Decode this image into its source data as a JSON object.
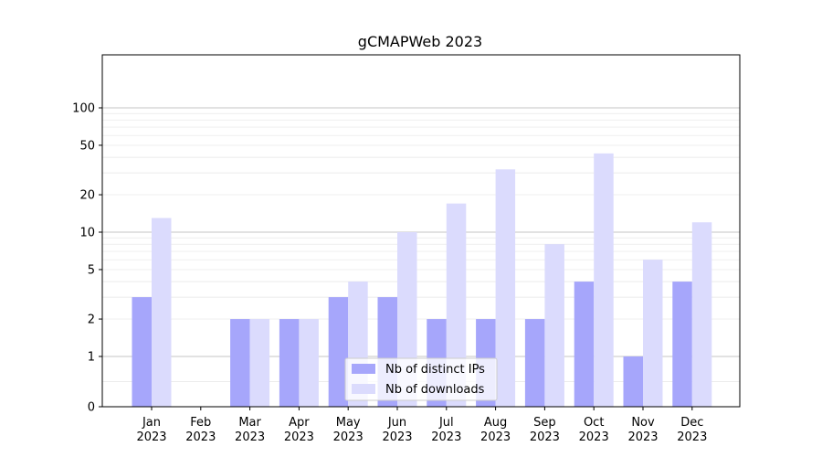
{
  "chart_data": {
    "type": "bar",
    "title": "gCMAPWeb 2023",
    "xlabel": "",
    "ylabel": "",
    "yscale": "symlog",
    "ylim": [
      0,
      120
    ],
    "yticks": [
      0,
      1,
      2,
      5,
      10,
      20,
      50,
      100
    ],
    "grid": "horizontal",
    "legend_position": "bottom-center",
    "categories": [
      "Jan\n2023",
      "Feb\n2023",
      "Mar\n2023",
      "Apr\n2023",
      "May\n2023",
      "Jun\n2023",
      "Jul\n2023",
      "Aug\n2023",
      "Sep\n2023",
      "Oct\n2023",
      "Nov\n2023",
      "Dec\n2023"
    ],
    "series": [
      {
        "name": "Nb of distinct IPs",
        "color": "#a6a6fb",
        "values": [
          3,
          0,
          2,
          2,
          3,
          3,
          2,
          2,
          2,
          4,
          1,
          4
        ]
      },
      {
        "name": "Nb of downloads",
        "color": "#dbdbfd",
        "values": [
          13,
          0,
          2,
          2,
          4,
          10,
          17,
          32,
          8,
          43,
          6,
          12
        ]
      }
    ]
  }
}
